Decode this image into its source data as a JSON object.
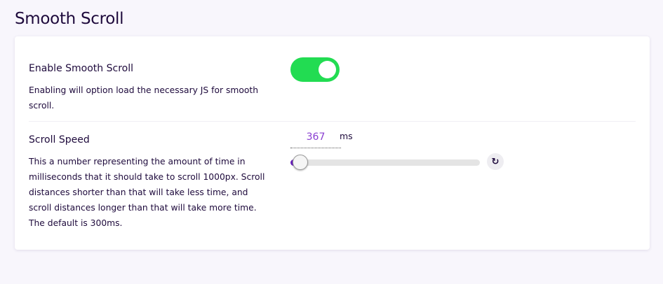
{
  "page_title": "Smooth Scroll",
  "settings": [
    {
      "label": "Enable Smooth Scroll",
      "description": "Enabling will option load the necessary JS for smooth scroll.",
      "enabled": true,
      "toggle_color": "#22dc52"
    },
    {
      "label": "Scroll Speed",
      "description": "This a number representing the amount of time in milliseconds that it should take to scroll 1000px. Scroll distances shorter than that will take less time, and scroll distances longer than that will take more time. The default is 300ms.",
      "value": "367",
      "unit": "ms",
      "reset_icon": "reset-icon"
    }
  ]
}
